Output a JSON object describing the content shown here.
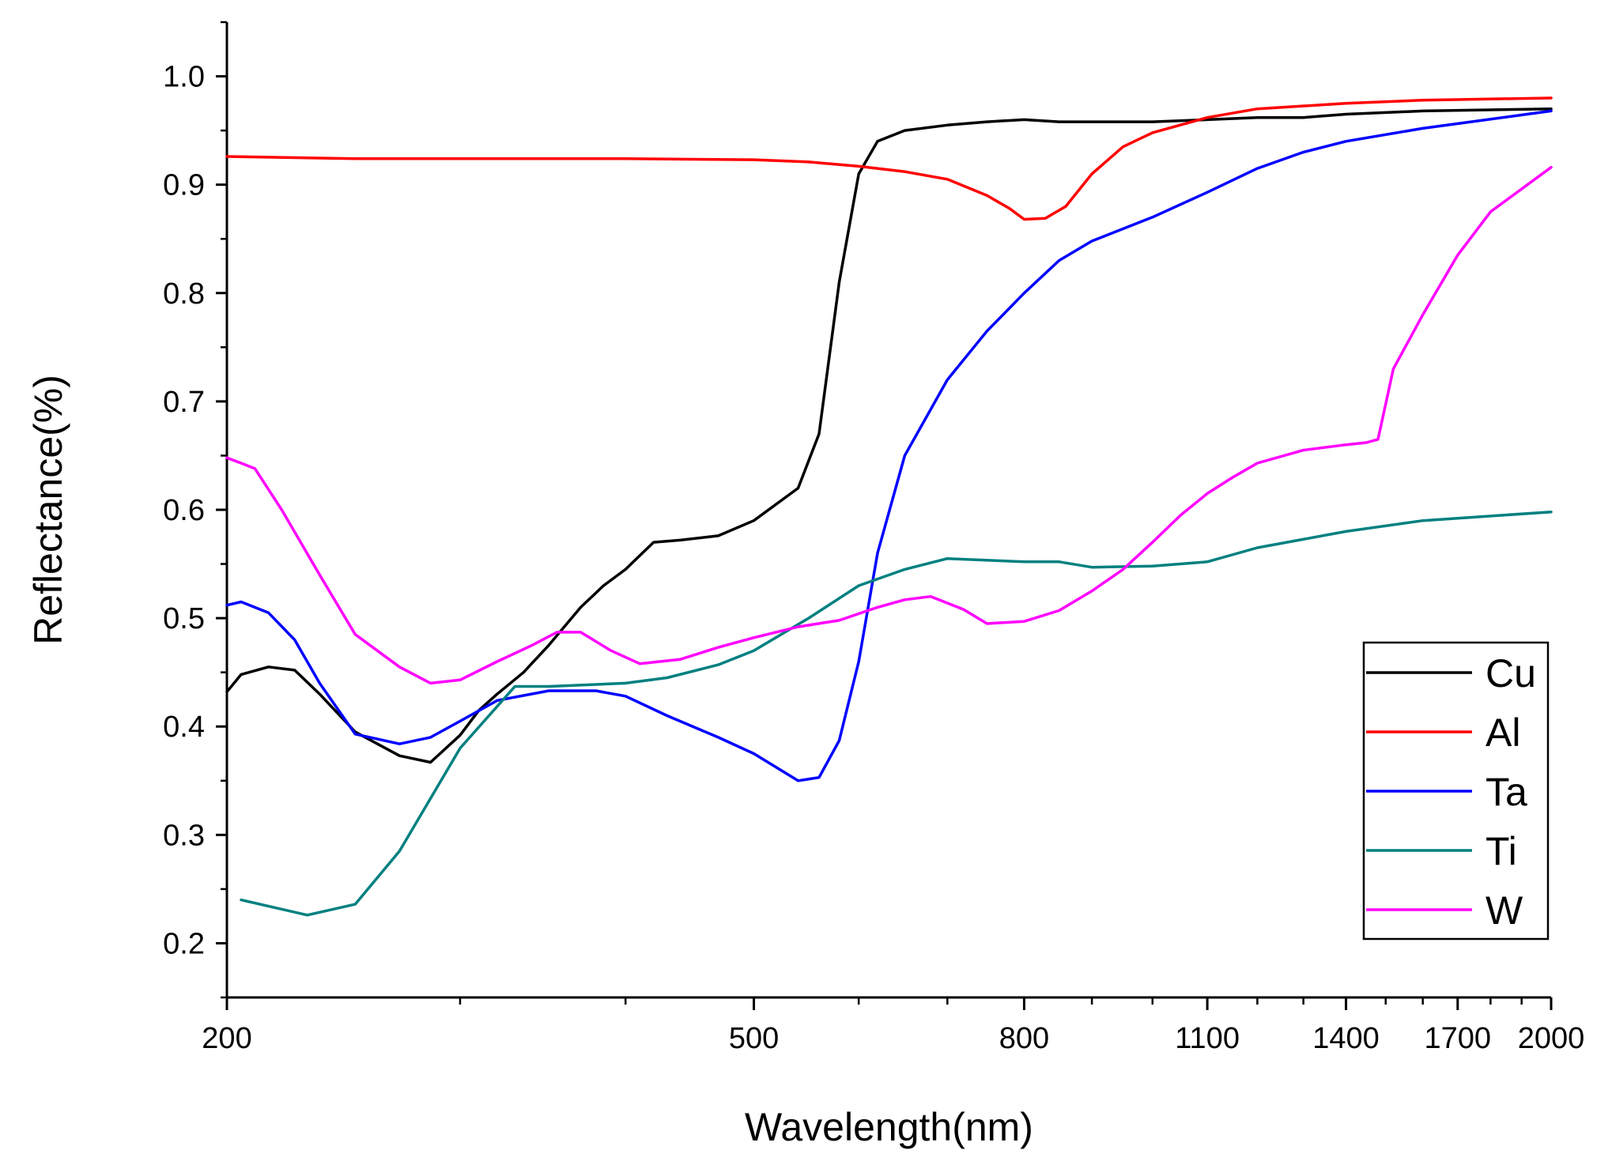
{
  "chart_data": {
    "type": "line",
    "title": "",
    "xlabel": "Wavelength(nm)",
    "ylabel": "Reflectance(%)",
    "xscale": "log",
    "xlim": [
      200,
      2000
    ],
    "ylim": [
      0.15,
      1.05
    ],
    "xticks": [
      200,
      500,
      800,
      1100,
      1400,
      1700,
      2000
    ],
    "xtick_labels": [
      "200",
      "500",
      "800",
      "1100",
      "1400",
      "1700",
      "2000"
    ],
    "yticks": [
      0.2,
      0.3,
      0.4,
      0.5,
      0.6,
      0.7,
      0.8,
      0.9,
      1.0
    ],
    "ytick_labels": [
      "0.2",
      "0.3",
      "0.4",
      "0.5",
      "0.6",
      "0.7",
      "0.8",
      "0.9",
      "1.0"
    ],
    "grid": false,
    "legend_position": "right",
    "series": [
      {
        "name": "Cu",
        "color": "#000000",
        "x": [
          200,
          205,
          215,
          225,
          235,
          250,
          270,
          285,
          300,
          310,
          320,
          335,
          350,
          370,
          385,
          400,
          420,
          440,
          470,
          500,
          540,
          560,
          580,
          600,
          620,
          650,
          700,
          750,
          800,
          850,
          900,
          1000,
          1100,
          1200,
          1300,
          1400,
          1600,
          2000
        ],
        "values": [
          0.432,
          0.448,
          0.455,
          0.452,
          0.43,
          0.395,
          0.373,
          0.367,
          0.392,
          0.415,
          0.43,
          0.45,
          0.475,
          0.51,
          0.53,
          0.545,
          0.57,
          0.572,
          0.576,
          0.59,
          0.62,
          0.67,
          0.81,
          0.91,
          0.94,
          0.95,
          0.955,
          0.958,
          0.96,
          0.958,
          0.958,
          0.958,
          0.96,
          0.962,
          0.962,
          0.965,
          0.968,
          0.97
        ]
      },
      {
        "name": "Al",
        "color": "#ff0000",
        "x": [
          200,
          250,
          300,
          400,
          500,
          550,
          600,
          650,
          700,
          750,
          780,
          800,
          830,
          860,
          900,
          950,
          1000,
          1100,
          1200,
          1400,
          1600,
          2000
        ],
        "values": [
          0.926,
          0.924,
          0.924,
          0.924,
          0.923,
          0.921,
          0.917,
          0.912,
          0.905,
          0.89,
          0.878,
          0.868,
          0.869,
          0.88,
          0.91,
          0.935,
          0.948,
          0.962,
          0.97,
          0.975,
          0.978,
          0.98
        ]
      },
      {
        "name": "Ta",
        "color": "#0000ff",
        "x": [
          200,
          205,
          215,
          225,
          235,
          250,
          270,
          285,
          300,
          320,
          350,
          380,
          400,
          430,
          470,
          500,
          540,
          560,
          580,
          600,
          620,
          650,
          700,
          750,
          800,
          850,
          900,
          1000,
          1100,
          1200,
          1300,
          1400,
          1600,
          2000
        ],
        "values": [
          0.512,
          0.515,
          0.505,
          0.48,
          0.44,
          0.393,
          0.384,
          0.39,
          0.405,
          0.424,
          0.433,
          0.433,
          0.428,
          0.41,
          0.39,
          0.375,
          0.35,
          0.353,
          0.387,
          0.46,
          0.56,
          0.65,
          0.72,
          0.765,
          0.8,
          0.83,
          0.848,
          0.87,
          0.893,
          0.915,
          0.93,
          0.94,
          0.952,
          0.968
        ]
      },
      {
        "name": "Ti",
        "color": "#008080",
        "x": [
          205,
          230,
          250,
          270,
          300,
          330,
          350,
          400,
          430,
          470,
          500,
          550,
          600,
          650,
          700,
          800,
          850,
          900,
          1000,
          1100,
          1200,
          1400,
          1600,
          2000
        ],
        "values": [
          0.24,
          0.226,
          0.236,
          0.285,
          0.38,
          0.437,
          0.437,
          0.44,
          0.445,
          0.457,
          0.47,
          0.5,
          0.53,
          0.545,
          0.555,
          0.552,
          0.552,
          0.547,
          0.548,
          0.552,
          0.565,
          0.58,
          0.59,
          0.598
        ]
      },
      {
        "name": "W",
        "color": "#ff00ff",
        "x": [
          200,
          205,
          210,
          220,
          235,
          250,
          270,
          285,
          300,
          320,
          340,
          355,
          370,
          390,
          410,
          440,
          470,
          500,
          540,
          580,
          620,
          650,
          680,
          720,
          750,
          800,
          850,
          900,
          950,
          1000,
          1050,
          1100,
          1150,
          1200,
          1300,
          1400,
          1450,
          1480,
          1520,
          1600,
          1700,
          1800,
          2000
        ],
        "values": [
          0.648,
          0.643,
          0.638,
          0.6,
          0.54,
          0.485,
          0.455,
          0.44,
          0.443,
          0.46,
          0.475,
          0.487,
          0.487,
          0.47,
          0.458,
          0.462,
          0.473,
          0.482,
          0.492,
          0.498,
          0.51,
          0.517,
          0.52,
          0.508,
          0.495,
          0.497,
          0.507,
          0.525,
          0.545,
          0.57,
          0.595,
          0.615,
          0.63,
          0.643,
          0.655,
          0.66,
          0.662,
          0.665,
          0.73,
          0.78,
          0.835,
          0.875,
          0.916
        ]
      }
    ]
  }
}
